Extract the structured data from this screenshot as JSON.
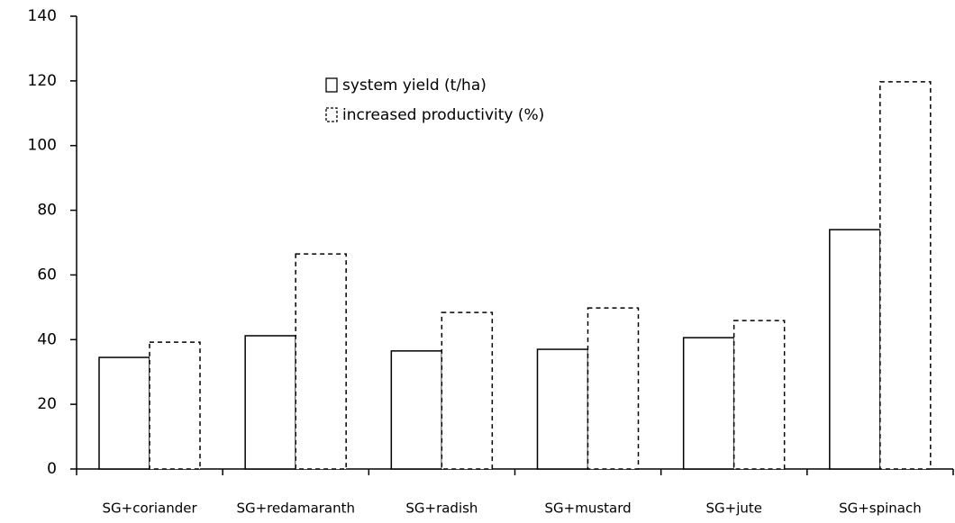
{
  "chart_data": {
    "type": "bar",
    "categories": [
      "SG+coriander",
      "SG+redamaranth",
      "SG+radish",
      "SG+mustard",
      "SG+jute",
      "SG+spinach"
    ],
    "series": [
      {
        "name": "system yield (t/ha)",
        "color": "#000000",
        "line_style": "solid",
        "values": [
          34.5,
          41.2,
          36.5,
          37,
          40.6,
          74
        ]
      },
      {
        "name": "increased productivity (%)",
        "color": "#000000",
        "line_style": "dashed",
        "values": [
          39.2,
          66.5,
          48.4,
          49.8,
          45.9,
          119.7
        ]
      }
    ],
    "ylim": [
      0,
      140
    ],
    "yticks": [
      0,
      20,
      40,
      60,
      80,
      100,
      120,
      140
    ],
    "grid": false,
    "legend": "top"
  }
}
